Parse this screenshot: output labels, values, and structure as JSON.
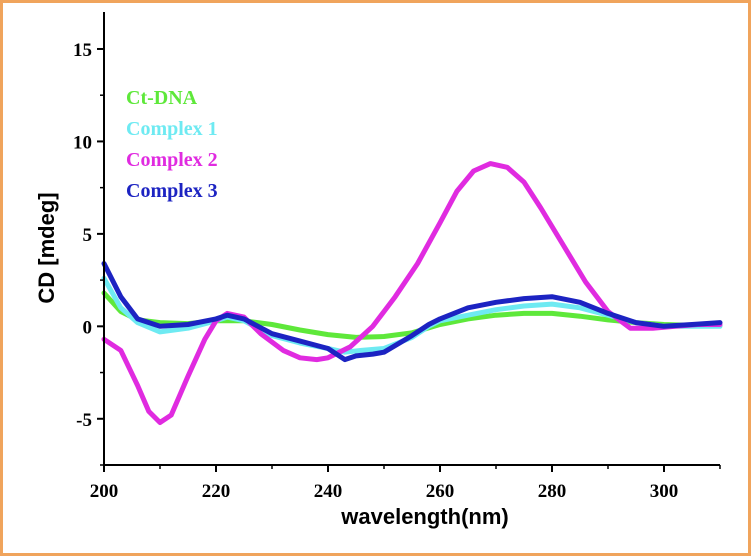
{
  "chart_data": {
    "type": "line",
    "xlabel": "wavelength(nm)",
    "ylabel": "CD [mdeg]",
    "xlim": [
      200,
      310
    ],
    "ylim": [
      -7.5,
      17
    ],
    "x_ticks": [
      200,
      220,
      240,
      260,
      280,
      300
    ],
    "y_ticks": [
      15,
      10,
      5,
      0,
      -5
    ],
    "x_tick_labels": [
      "200",
      "220",
      "240",
      "260",
      "280",
      "300"
    ],
    "y_tick_labels": [
      "15",
      "10",
      "5",
      "0",
      "-5"
    ],
    "grid": false,
    "legend_position": "top-left",
    "series": [
      {
        "name": "Ct-DNA",
        "color": "#5ee83a",
        "x": [
          200,
          203,
          206,
          210,
          215,
          220,
          225,
          230,
          235,
          240,
          245,
          250,
          255,
          260,
          265,
          270,
          275,
          280,
          285,
          290,
          295,
          300,
          305,
          310
        ],
        "y": [
          1.8,
          0.8,
          0.35,
          0.2,
          0.15,
          0.3,
          0.3,
          0.1,
          -0.2,
          -0.45,
          -0.6,
          -0.55,
          -0.35,
          0.1,
          0.4,
          0.6,
          0.7,
          0.7,
          0.55,
          0.35,
          0.2,
          0.1,
          0.05,
          0.05
        ]
      },
      {
        "name": "Complex 1",
        "color": "#6eeaf2",
        "x": [
          200,
          203,
          206,
          210,
          215,
          220,
          222,
          225,
          230,
          235,
          240,
          243,
          246,
          250,
          255,
          258,
          260,
          265,
          270,
          275,
          280,
          285,
          290,
          295,
          300,
          305,
          310
        ],
        "y": [
          2.6,
          1.0,
          0.2,
          -0.3,
          -0.1,
          0.3,
          0.5,
          0.3,
          -0.5,
          -0.9,
          -1.2,
          -1.4,
          -1.3,
          -1.2,
          -0.6,
          0.0,
          0.3,
          0.6,
          0.9,
          1.1,
          1.2,
          1.0,
          0.6,
          0.2,
          0.0,
          0.0,
          0.0
        ]
      },
      {
        "name": "Complex 2",
        "color": "#e02be0",
        "x": [
          200,
          203,
          206,
          208,
          210,
          212,
          215,
          218,
          220,
          222,
          225,
          228,
          232,
          235,
          238,
          240,
          244,
          248,
          252,
          256,
          260,
          263,
          266,
          269,
          272,
          275,
          278,
          282,
          286,
          290,
          294,
          298,
          302,
          306,
          310
        ],
        "y": [
          -0.7,
          -1.3,
          -3.2,
          -4.6,
          -5.2,
          -4.8,
          -2.7,
          -0.7,
          0.3,
          0.7,
          0.5,
          -0.4,
          -1.3,
          -1.7,
          -1.8,
          -1.7,
          -1.1,
          0.0,
          1.6,
          3.4,
          5.6,
          7.3,
          8.4,
          8.8,
          8.6,
          7.8,
          6.4,
          4.4,
          2.4,
          0.8,
          -0.1,
          -0.1,
          0.0,
          0.1,
          0.1
        ]
      },
      {
        "name": "Complex 3",
        "color": "#1c23c2",
        "x": [
          200,
          203,
          206,
          210,
          215,
          220,
          222,
          225,
          230,
          235,
          240,
          243,
          245,
          248,
          250,
          255,
          258,
          260,
          265,
          270,
          275,
          280,
          285,
          290,
          295,
          300,
          305,
          310
        ],
        "y": [
          3.4,
          1.6,
          0.4,
          0.0,
          0.1,
          0.4,
          0.6,
          0.4,
          -0.4,
          -0.8,
          -1.2,
          -1.8,
          -1.6,
          -1.5,
          -1.4,
          -0.5,
          0.1,
          0.4,
          1.0,
          1.3,
          1.5,
          1.6,
          1.3,
          0.7,
          0.2,
          0.0,
          0.1,
          0.2
        ]
      }
    ]
  }
}
